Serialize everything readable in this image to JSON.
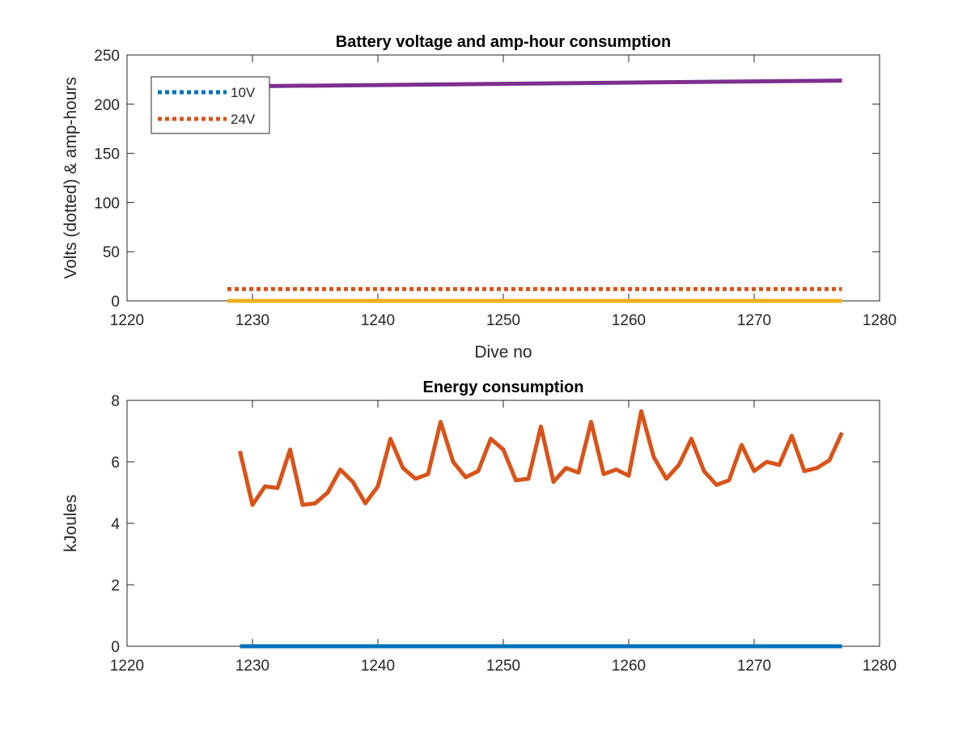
{
  "chart_data": [
    {
      "type": "line",
      "title": "Battery voltage and amp-hour consumption",
      "xlabel": "Dive no",
      "ylabel": "Volts (dotted) & amp-hours",
      "xlim": [
        1220,
        1280
      ],
      "ylim": [
        0,
        250
      ],
      "xticks": [
        1220,
        1230,
        1240,
        1250,
        1260,
        1270,
        1280
      ],
      "yticks": [
        0,
        50,
        100,
        150,
        200,
        250
      ],
      "grid": false,
      "legend_position": "top-left",
      "series": [
        {
          "name": "10V",
          "color": "#0072BD",
          "style": "dotted",
          "x": [
            1228,
            1277
          ],
          "y": [
            0,
            0
          ]
        },
        {
          "name": "24V",
          "color": "#D95319",
          "style": "dotted",
          "x": [
            1228,
            1277
          ],
          "y": [
            12,
            12
          ]
        },
        {
          "color": "#EDB120",
          "style": "solid",
          "x": [
            1228,
            1277
          ],
          "y": [
            0,
            0
          ]
        },
        {
          "color": "#7E2F8E",
          "style": "solid",
          "x": [
            1228,
            1277
          ],
          "y": [
            218,
            224
          ]
        }
      ]
    },
    {
      "type": "line",
      "title": "Energy consumption",
      "xlabel": "",
      "ylabel": "kJoules",
      "xlim": [
        1220,
        1280
      ],
      "ylim": [
        0,
        8
      ],
      "xticks": [
        1220,
        1230,
        1240,
        1250,
        1260,
        1270,
        1280
      ],
      "yticks": [
        0,
        2,
        4,
        6,
        8
      ],
      "grid": false,
      "series": [
        {
          "color": "#0072BD",
          "style": "solid",
          "x": [
            1229,
            1277
          ],
          "y": [
            0,
            0
          ]
        },
        {
          "color": "#D95319",
          "style": "solid",
          "x": [
            1229,
            1230,
            1231,
            1232,
            1233,
            1234,
            1235,
            1236,
            1237,
            1238,
            1239,
            1240,
            1241,
            1242,
            1243,
            1244,
            1245,
            1246,
            1247,
            1248,
            1249,
            1250,
            1251,
            1252,
            1253,
            1254,
            1255,
            1256,
            1257,
            1258,
            1259,
            1260,
            1261,
            1262,
            1263,
            1264,
            1265,
            1266,
            1267,
            1268,
            1269,
            1270,
            1271,
            1272,
            1273,
            1274,
            1275,
            1276,
            1277
          ],
          "y": [
            6.35,
            4.6,
            5.2,
            5.15,
            6.4,
            4.6,
            4.65,
            5.0,
            5.75,
            5.35,
            4.65,
            5.2,
            6.75,
            5.8,
            5.45,
            5.6,
            7.3,
            6.0,
            5.5,
            5.7,
            6.75,
            6.4,
            5.4,
            5.45,
            7.15,
            5.35,
            5.8,
            5.65,
            7.3,
            5.6,
            5.75,
            5.55,
            7.65,
            6.15,
            5.45,
            5.9,
            6.75,
            5.7,
            5.25,
            5.4,
            6.55,
            5.7,
            6.0,
            5.9,
            6.85,
            5.7,
            5.8,
            6.05,
            6.95
          ]
        }
      ]
    }
  ]
}
